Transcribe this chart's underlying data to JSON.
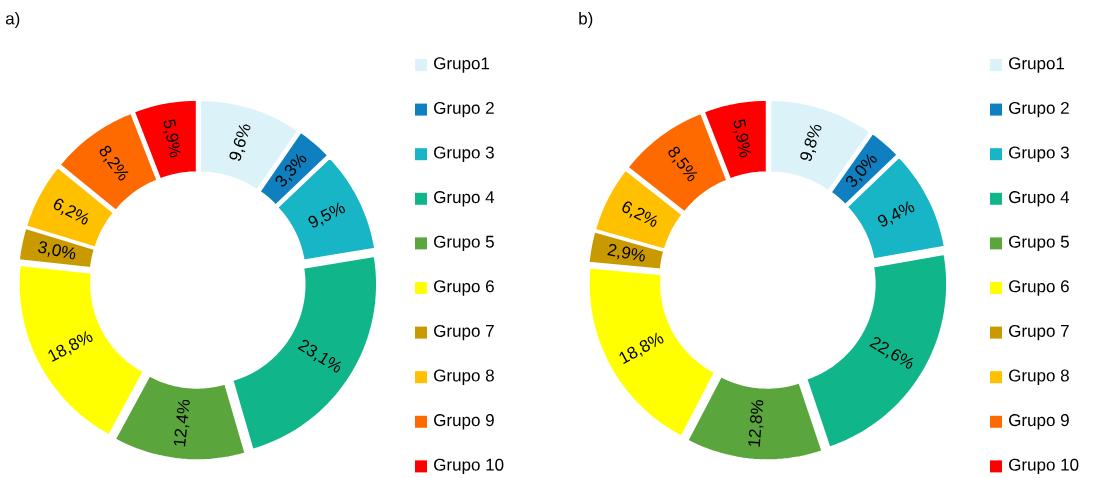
{
  "chart_data": [
    {
      "type": "donut",
      "title": "a)",
      "categories": [
        "Grupo1",
        "Grupo 2",
        "Grupo 3",
        "Grupo 4",
        "Grupo 5",
        "Grupo 6",
        "Grupo 7",
        "Grupo 8",
        "Grupo 9",
        "Grupo 10"
      ],
      "values": [
        9.6,
        3.3,
        9.5,
        23.1,
        12.4,
        18.8,
        3.0,
        6.2,
        8.2,
        5.9
      ],
      "value_labels": [
        "9,6%",
        "3,3%",
        "9,5%",
        "23,1%",
        "12,4%",
        "18,8%",
        "3,0%",
        "6,2%",
        "8,2%",
        "5,9%"
      ],
      "colors": [
        "#dbf3f8",
        "#0f7fbf",
        "#17b5c6",
        "#10b58a",
        "#5aa63c",
        "#ffff00",
        "#c99a00",
        "#ffc000",
        "#ff6a00",
        "#ff0000"
      ],
      "legend": "right"
    },
    {
      "type": "donut",
      "title": "b)",
      "categories": [
        "Grupo1",
        "Grupo 2",
        "Grupo 3",
        "Grupo 4",
        "Grupo 5",
        "Grupo 6",
        "Grupo 7",
        "Grupo 8",
        "Grupo 9",
        "Grupo 10"
      ],
      "values": [
        9.8,
        3.0,
        9.4,
        22.6,
        12.8,
        18.8,
        2.9,
        6.2,
        8.5,
        5.9
      ],
      "value_labels": [
        "9,8%",
        "3,0%",
        "9,4%",
        "22,6%",
        "12,8%",
        "18,8%",
        "2,9%",
        "6,2%",
        "8,5%",
        "5,9%"
      ],
      "colors": [
        "#dbf3f8",
        "#0f7fbf",
        "#17b5c6",
        "#10b58a",
        "#5aa63c",
        "#ffff00",
        "#c99a00",
        "#ffc000",
        "#ff6a00",
        "#ff0000"
      ],
      "legend": "right"
    }
  ]
}
